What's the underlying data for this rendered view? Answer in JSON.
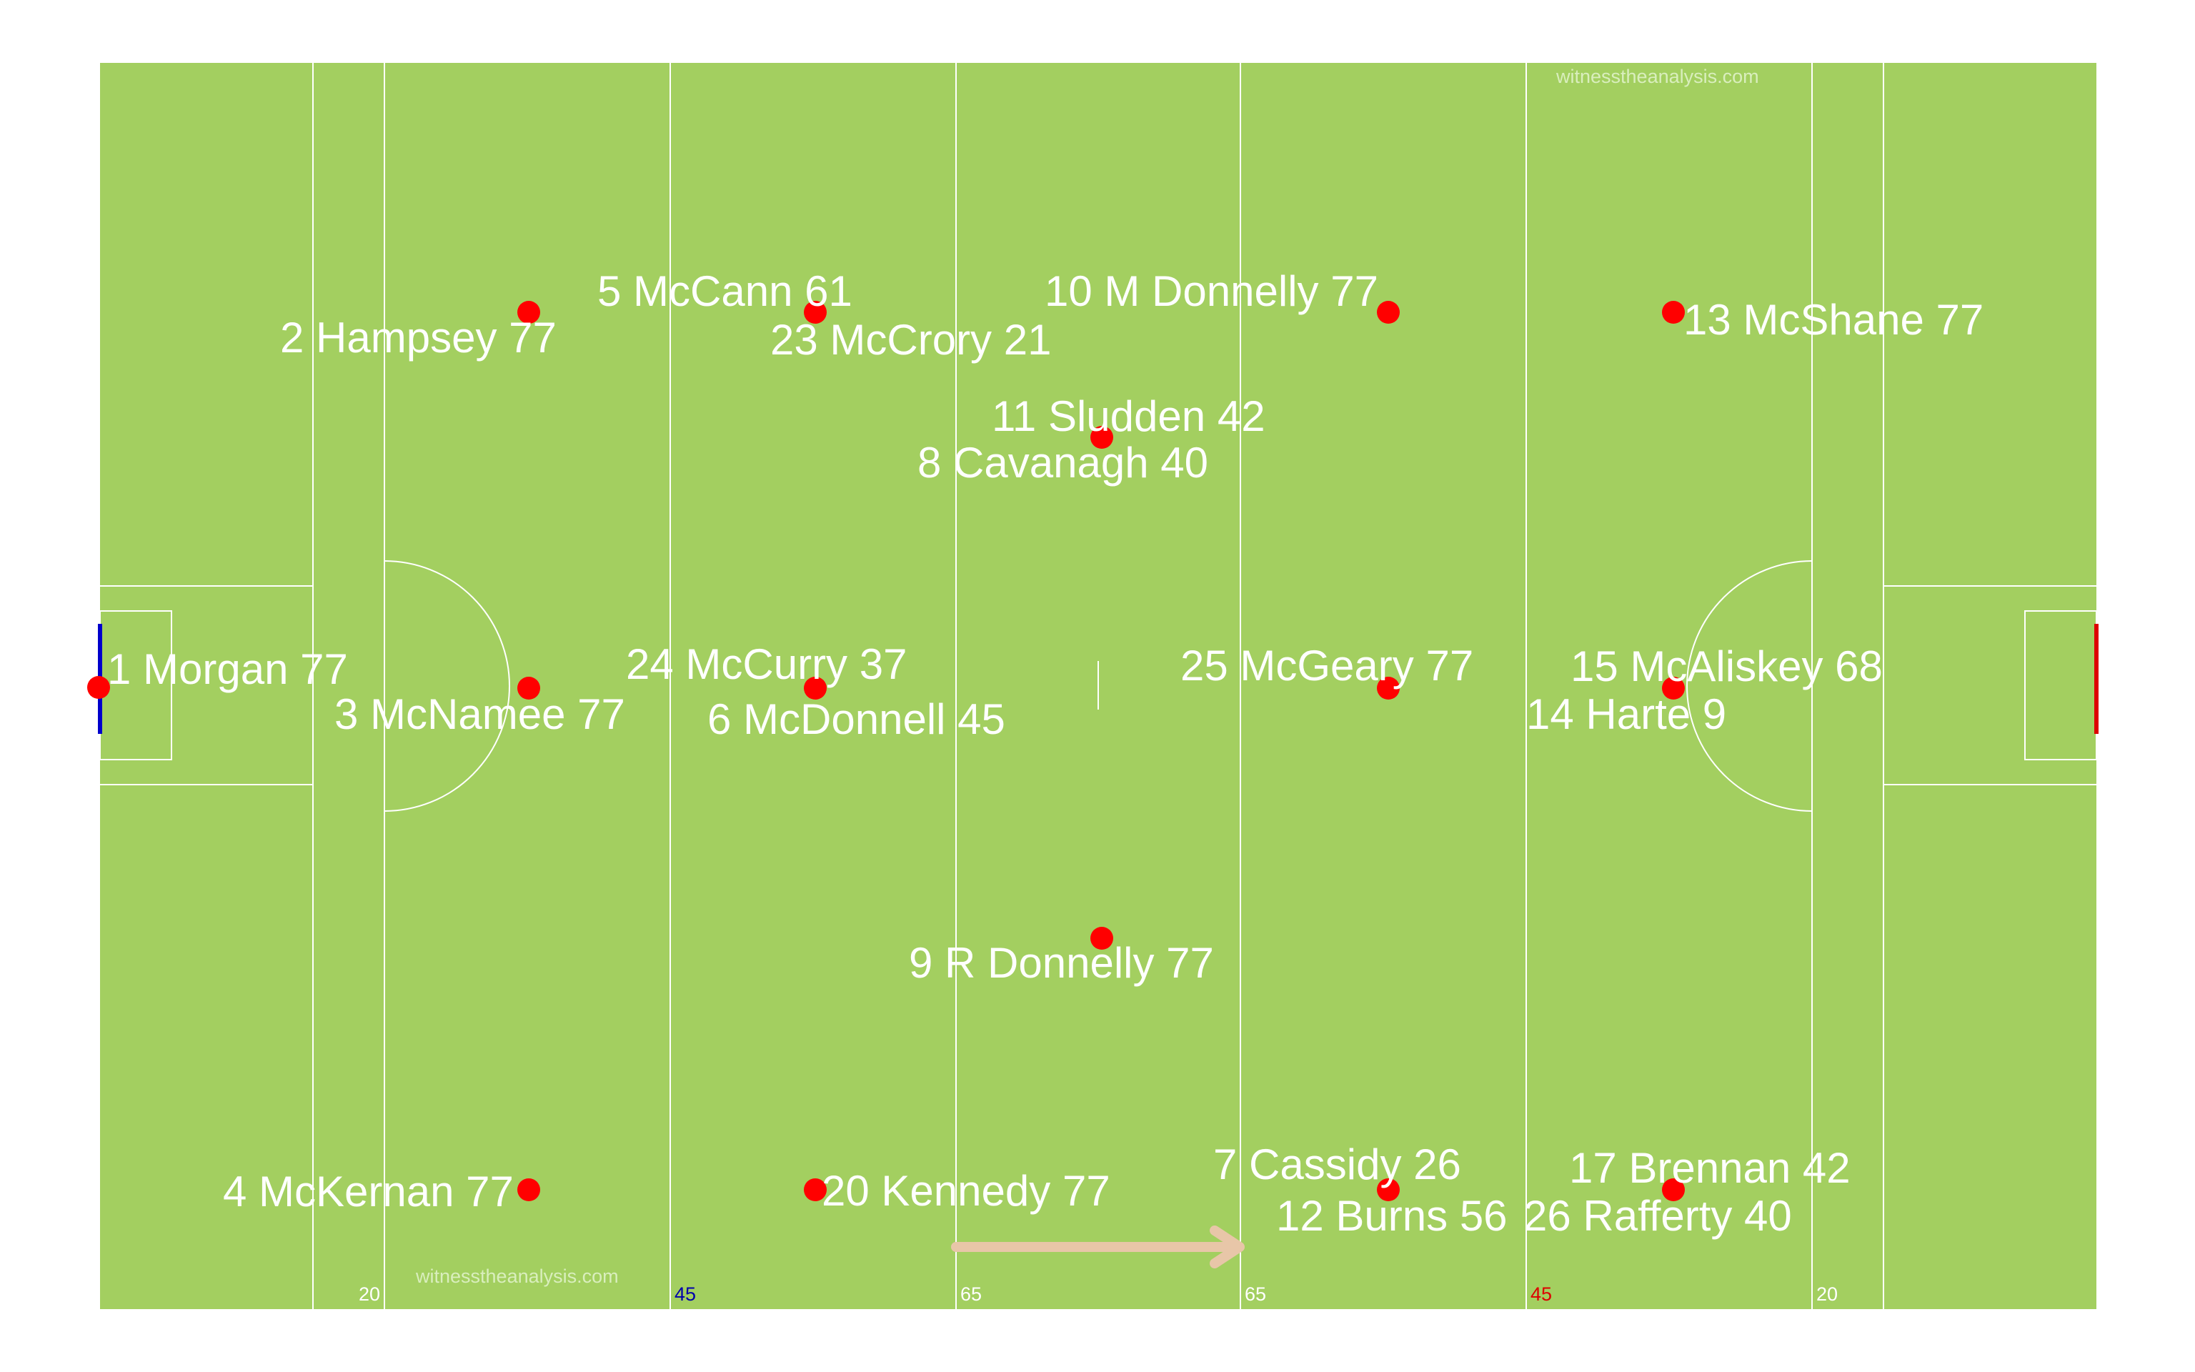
{
  "colors": {
    "pitch": "#a3cf60",
    "line": "#ffffff",
    "marker": "#ff0000",
    "label": "#ffffff",
    "left_goal": "#0000cc",
    "right_goal": "#dd0000",
    "left_45": "#0000aa",
    "right_45": "#dd0000",
    "arrow": "#e8c6a8",
    "watermark": "#d9eebd"
  },
  "watermarks": [
    "witnesstheanalysis.com",
    "witnesstheanalysis.com"
  ],
  "yard_markers": [
    "20",
    "45",
    "65",
    "65",
    "45",
    "20"
  ],
  "players": [
    {
      "id": "1",
      "label": "1 Morgan 77"
    },
    {
      "id": "2",
      "label": "2 Hampsey 77"
    },
    {
      "id": "3",
      "label": "3 McNamee 77"
    },
    {
      "id": "4",
      "label": "4 McKernan 77"
    },
    {
      "id": "5",
      "label": "5 McCann 61"
    },
    {
      "id": "23",
      "label": "23 McCrory 21"
    },
    {
      "id": "24",
      "label": "24 McCurry 37"
    },
    {
      "id": "6",
      "label": "6 McDonnell 45"
    },
    {
      "id": "20",
      "label": "20 Kennedy 77"
    },
    {
      "id": "11",
      "label": "11 Sludden  42"
    },
    {
      "id": "8",
      "label": "8 Cavanagh 40"
    },
    {
      "id": "9",
      "label": "9 R Donnelly 77"
    },
    {
      "id": "10",
      "label": "10 M Donnelly 77"
    },
    {
      "id": "25",
      "label": "25 McGeary 77"
    },
    {
      "id": "7",
      "label": "7 Cassidy 26"
    },
    {
      "id": "12",
      "label": "12 Burns 56"
    },
    {
      "id": "13",
      "label": "13 McShane 77"
    },
    {
      "id": "15",
      "label": "15 McAliskey 68"
    },
    {
      "id": "14",
      "label": "14 Harte 9"
    },
    {
      "id": "17",
      "label": "17 Brennan  42"
    },
    {
      "id": "26",
      "label": "26 Rafferty 40"
    }
  ]
}
